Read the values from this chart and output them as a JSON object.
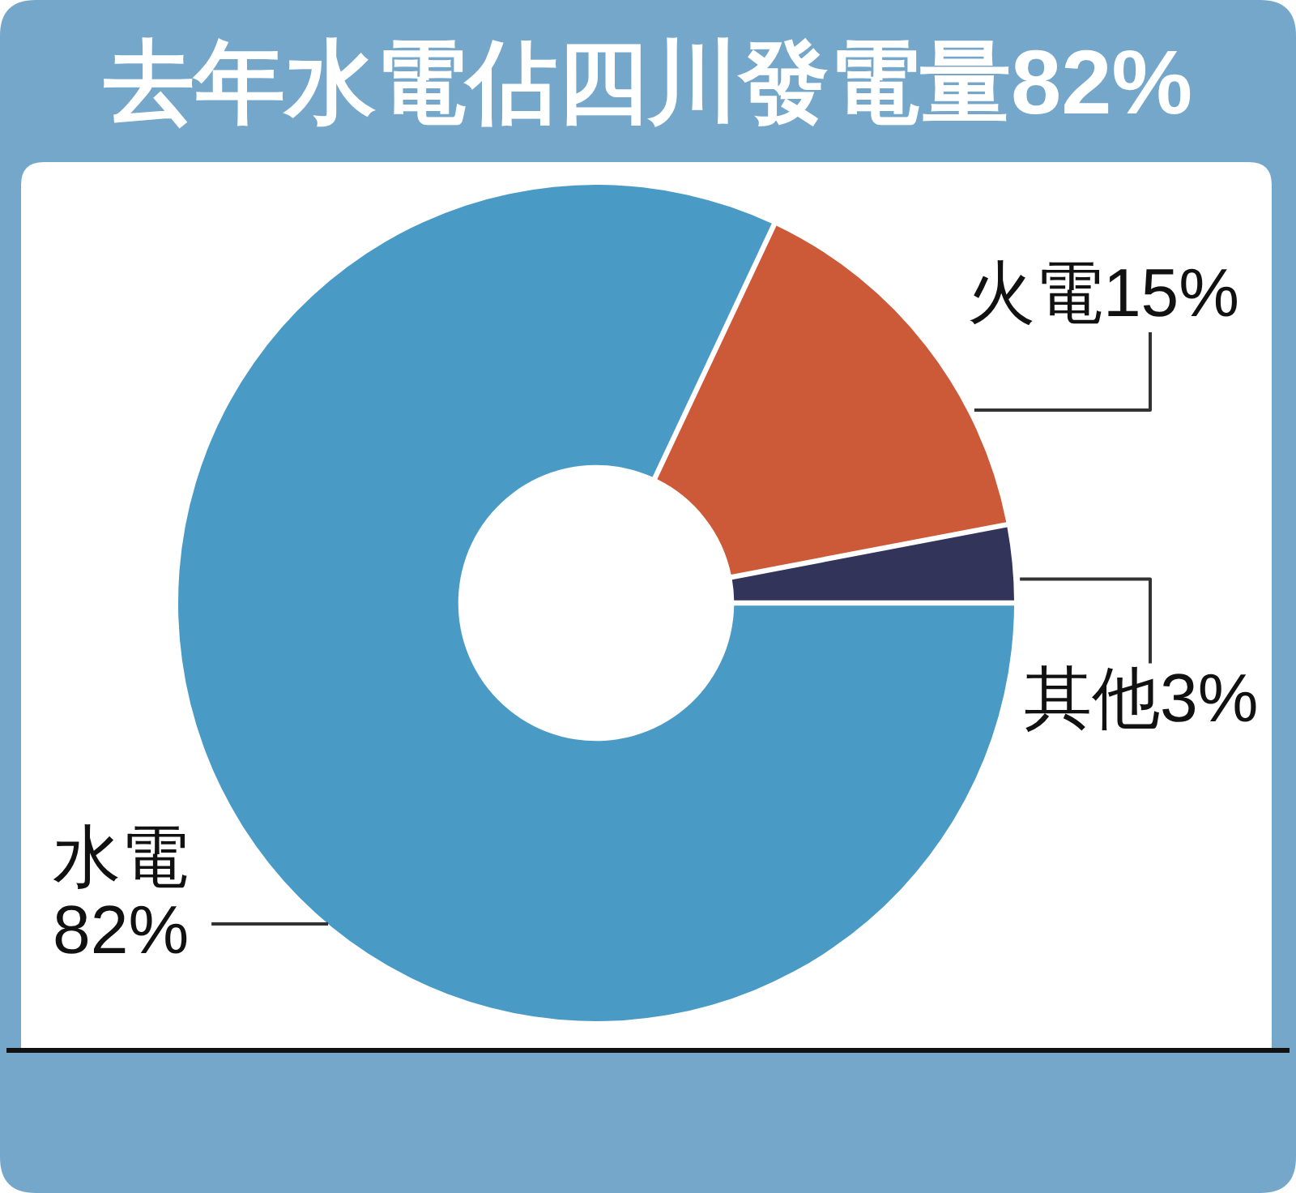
{
  "chart_data": {
    "type": "donut",
    "title": "去年水電佔四川發電量82%",
    "categories": [
      "水電",
      "火電",
      "其他"
    ],
    "values": [
      82,
      15,
      3
    ],
    "colors": [
      "#4a9ac6",
      "#cc5a38",
      "#33345a"
    ],
    "value_labels": [
      "82%",
      "15%",
      "3%"
    ]
  }
}
